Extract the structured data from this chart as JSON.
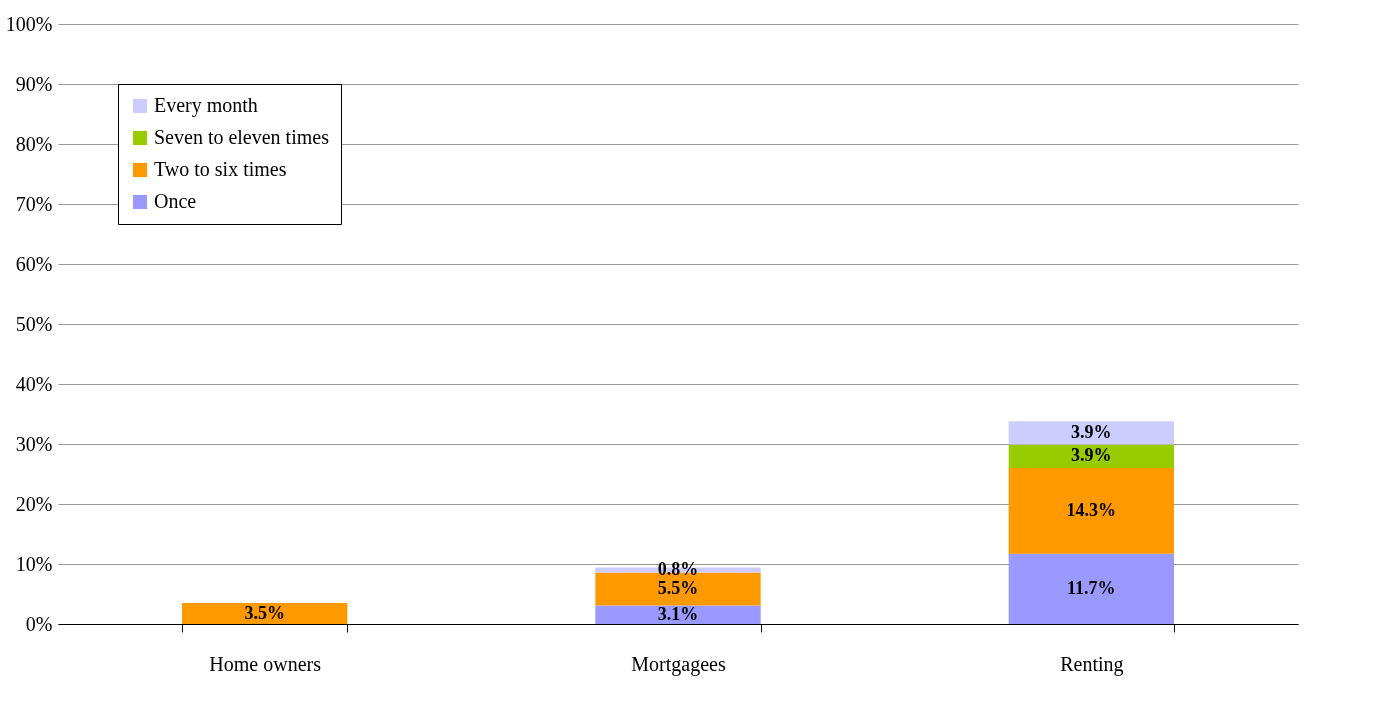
{
  "chart_data": {
    "type": "bar",
    "stacked": true,
    "categories": [
      "Home owners",
      "Mortgagees",
      "Renting"
    ],
    "series": [
      {
        "name": "Once",
        "color": "#9999ff",
        "values": [
          null,
          3.1,
          11.7
        ],
        "value_labels": [
          null,
          "3.1%",
          "11.7%"
        ]
      },
      {
        "name": "Two to six times",
        "color": "#ff9900",
        "values": [
          3.5,
          5.5,
          14.3
        ],
        "value_labels": [
          "3.5%",
          "5.5%",
          "14.3%"
        ]
      },
      {
        "name": "Seven to eleven times",
        "color": "#99cc00",
        "values": [
          null,
          null,
          3.9
        ],
        "value_labels": [
          null,
          null,
          "3.9%"
        ]
      },
      {
        "name": "Every month",
        "color": "#ccccff",
        "values": [
          null,
          0.8,
          3.9
        ],
        "value_labels": [
          null,
          "0.8%",
          "3.9%"
        ]
      }
    ],
    "ylim": [
      0,
      100
    ],
    "yticks": [
      {
        "value": 0,
        "label": "0%"
      },
      {
        "value": 10,
        "label": "10%"
      },
      {
        "value": 20,
        "label": "20%"
      },
      {
        "value": 30,
        "label": "30%"
      },
      {
        "value": 40,
        "label": "40%"
      },
      {
        "value": 50,
        "label": "50%"
      },
      {
        "value": 60,
        "label": "60%"
      },
      {
        "value": 70,
        "label": "70%"
      },
      {
        "value": 80,
        "label": "80%"
      },
      {
        "value": 90,
        "label": "90%"
      },
      {
        "value": 100,
        "label": "100%"
      }
    ],
    "grid": "y",
    "legend": "top left"
  }
}
